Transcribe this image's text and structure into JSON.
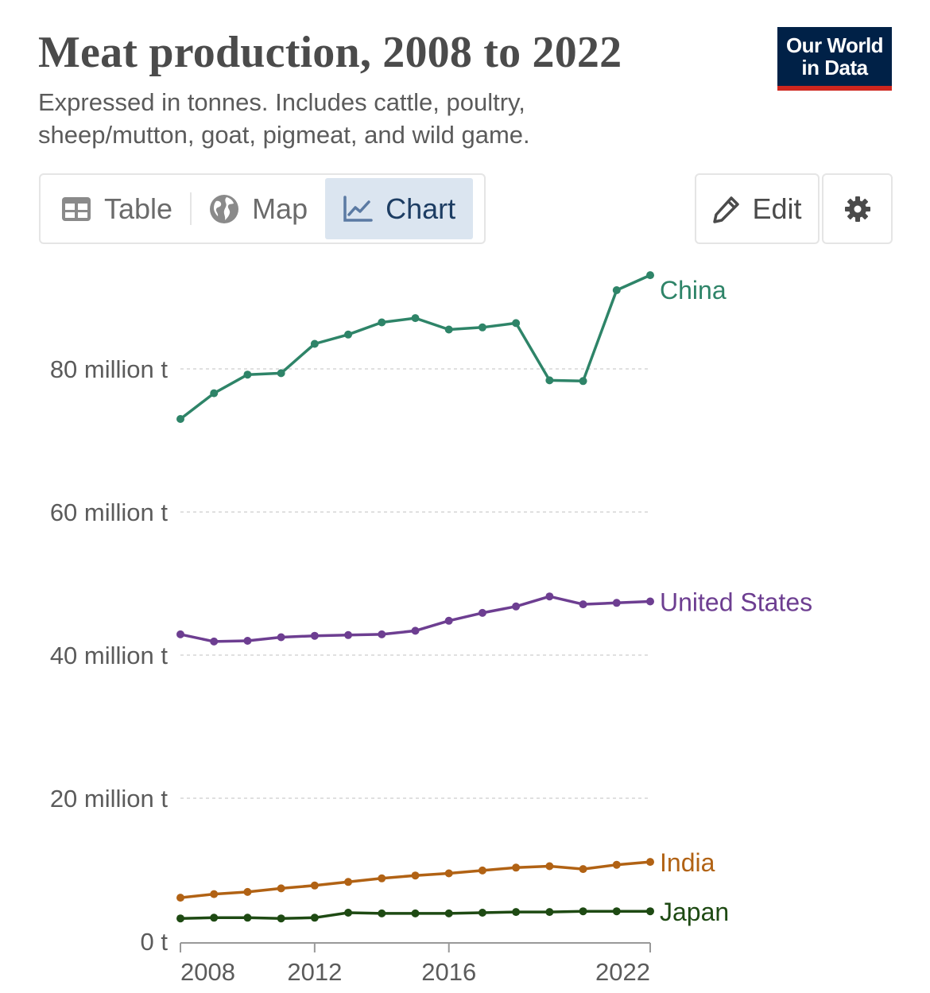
{
  "header": {
    "title": "Meat production, 2008 to 2022",
    "subtitle": "Expressed in tonnes. Includes cattle, poultry, sheep/mutton, goat, pigmeat, and wild game."
  },
  "logo": {
    "line1": "Our World",
    "line2": "in Data",
    "bg_color": "#002147",
    "accent_color": "#ce261e"
  },
  "tabs": [
    {
      "label": "Table",
      "icon": "table-icon",
      "active": false
    },
    {
      "label": "Map",
      "icon": "globe-icon",
      "active": false
    },
    {
      "label": "Chart",
      "icon": "line-chart-icon",
      "active": true
    }
  ],
  "actions": {
    "edit_label": "Edit",
    "edit_icon": "pencil-icon",
    "settings_icon": "gear-icon"
  },
  "chart_data": {
    "type": "line",
    "title": "Meat production, 2008 to 2022",
    "x": [
      2008,
      2009,
      2010,
      2011,
      2012,
      2013,
      2014,
      2015,
      2016,
      2017,
      2018,
      2019,
      2020,
      2021,
      2022
    ],
    "xticks": [
      {
        "value": 2008,
        "label": "2008"
      },
      {
        "value": 2012,
        "label": "2012"
      },
      {
        "value": 2016,
        "label": "2016"
      },
      {
        "value": 2022,
        "label": "2022"
      }
    ],
    "yticks": [
      {
        "value": 0,
        "label": "0 t"
      },
      {
        "value": 20,
        "label": "20 million t"
      },
      {
        "value": 40,
        "label": "40 million t"
      },
      {
        "value": 60,
        "label": "60 million t"
      },
      {
        "value": 80,
        "label": "80 million t"
      }
    ],
    "ylim": [
      0,
      95
    ],
    "yunit": "million t",
    "grid": true,
    "series": [
      {
        "name": "China",
        "color": "#2e8468",
        "values": [
          73.0,
          76.6,
          79.2,
          79.4,
          83.5,
          84.8,
          86.5,
          87.1,
          85.5,
          85.8,
          86.4,
          78.4,
          78.3,
          91.0,
          93.1
        ]
      },
      {
        "name": "United States",
        "color": "#6d3e91",
        "values": [
          42.9,
          41.9,
          42.0,
          42.5,
          42.7,
          42.8,
          42.9,
          43.4,
          44.8,
          45.9,
          46.8,
          48.2,
          47.1,
          47.3,
          47.5
        ]
      },
      {
        "name": "India",
        "color": "#b16214",
        "values": [
          6.1,
          6.6,
          6.9,
          7.4,
          7.8,
          8.3,
          8.8,
          9.2,
          9.5,
          9.9,
          10.3,
          10.5,
          10.1,
          10.7,
          11.1
        ]
      },
      {
        "name": "Japan",
        "color": "#1e4a13",
        "values": [
          3.2,
          3.3,
          3.3,
          3.2,
          3.3,
          4.0,
          3.9,
          3.9,
          3.9,
          4.0,
          4.1,
          4.1,
          4.2,
          4.2,
          4.2
        ]
      }
    ]
  }
}
